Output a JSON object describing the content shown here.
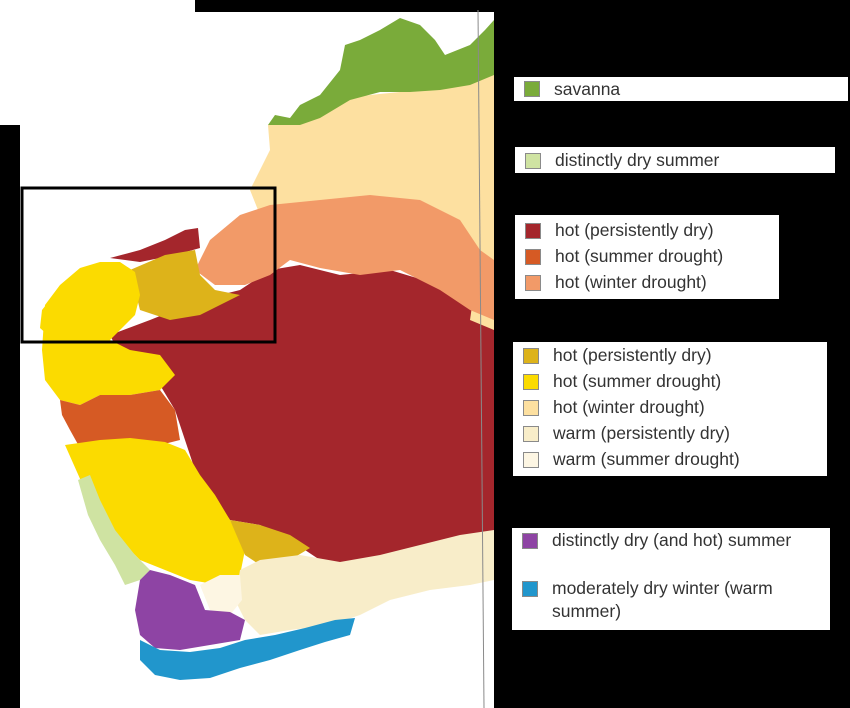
{
  "map": {
    "colors": {
      "background_white": "#ffffff",
      "black": "#000000",
      "savanna": "#7aab3a",
      "distinctly_dry_summer": "#cfe3a2",
      "hot_persistently_dry_dark": "#a4262c",
      "hot_summer_drought_dark": "#d65a24",
      "hot_winter_drought_dark": "#f29a68",
      "hot_persistently_dry": "#ddb31a",
      "hot_summer_drought": "#fbdb00",
      "hot_winter_drought": "#fde0a0",
      "warm_persistently_dry": "#f8edc9",
      "warm_summer_drought": "#fdf6e3",
      "distinctly_dry_hot_summer": "#8e44a4",
      "moderately_dry_winter": "#2196cc"
    },
    "highlight_box": "rectangle-outline"
  },
  "legend": {
    "groups": [
      {
        "items": [
          {
            "label": "savanna",
            "color": "#7aab3a"
          }
        ]
      },
      {
        "items": [
          {
            "label": "distinctly dry summer",
            "color": "#cfe3a2"
          }
        ]
      },
      {
        "items": [
          {
            "label": "hot (persistently dry)",
            "color": "#a4262c"
          },
          {
            "label": "hot (summer drought)",
            "color": "#d65a24"
          },
          {
            "label": "hot (winter drought)",
            "color": "#f29a68"
          }
        ]
      },
      {
        "items": [
          {
            "label": "hot (persistently dry)",
            "color": "#ddb31a"
          },
          {
            "label": "hot (summer drought)",
            "color": "#fbdb00"
          },
          {
            "label": "hot (winter drought)",
            "color": "#fde0a0"
          },
          {
            "label": "warm (persistently dry)",
            "color": "#f8edc9"
          },
          {
            "label": "warm (summer drought)",
            "color": "#fdf6e3"
          }
        ]
      },
      {
        "items": [
          {
            "label": "distinctly dry (and hot) summer",
            "color": "#8e44a4"
          },
          {
            "label": "moderately dry winter (warm summer)",
            "color": "#2196cc"
          }
        ]
      }
    ]
  }
}
